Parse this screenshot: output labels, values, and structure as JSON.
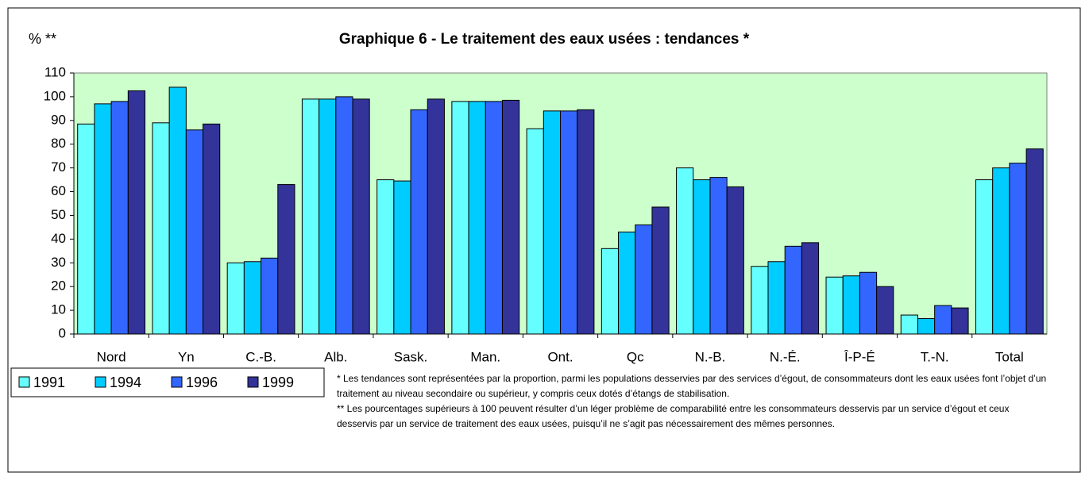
{
  "chart_data": {
    "type": "bar",
    "title": "Graphique 6 - Le traitement des eaux usées : tendances *",
    "y_label": "% **",
    "categories": [
      "Nord",
      "Yn",
      "C.-B.",
      "Alb.",
      "Sask.",
      "Man.",
      "Ont.",
      "Qc",
      "N.-B.",
      "N.-É.",
      "Î-P-É",
      "T.-N.",
      "Total"
    ],
    "series": [
      {
        "name": "1991",
        "color": "#66ffff",
        "values": [
          88.5,
          89,
          30,
          99,
          65,
          98,
          86.5,
          36,
          70,
          28.5,
          24,
          8,
          65
        ]
      },
      {
        "name": "1994",
        "color": "#00ccff",
        "values": [
          97,
          104,
          30.5,
          99,
          64.5,
          98,
          94,
          43,
          65,
          30.5,
          24.5,
          6.5,
          70
        ]
      },
      {
        "name": "1996",
        "color": "#3366ff",
        "values": [
          98,
          86,
          32,
          100,
          94.5,
          98,
          94,
          46,
          66,
          37,
          26,
          12,
          72
        ]
      },
      {
        "name": "1999",
        "color": "#333399",
        "values": [
          102.5,
          88.5,
          63,
          99,
          99,
          98.5,
          94.5,
          53.5,
          62,
          38.5,
          20,
          11,
          78
        ]
      }
    ],
    "ylim": [
      0,
      110
    ],
    "yticks": [
      0,
      10,
      20,
      30,
      40,
      50,
      60,
      70,
      80,
      90,
      100,
      110
    ],
    "plot_background": "#ccffcc",
    "legend": "bottom-left",
    "notes": [
      "* Les tendances sont représentées par la proportion, parmi les populations desservies par des services d’égout, de consommateurs dont les eaux usées font l’objet d’un traitement au niveau secondaire ou supérieur, y compris ceux dotés d’étangs de stabilisation.",
      "** Les pourcentages supérieurs à 100 peuvent résulter d’un léger problème de comparabilité entre les consommateurs desservis par un service d’égout et ceux desservis par un service de traitement des eaux usées, puisqu’il ne s’agit pas nécessairement des mêmes personnes."
    ]
  }
}
